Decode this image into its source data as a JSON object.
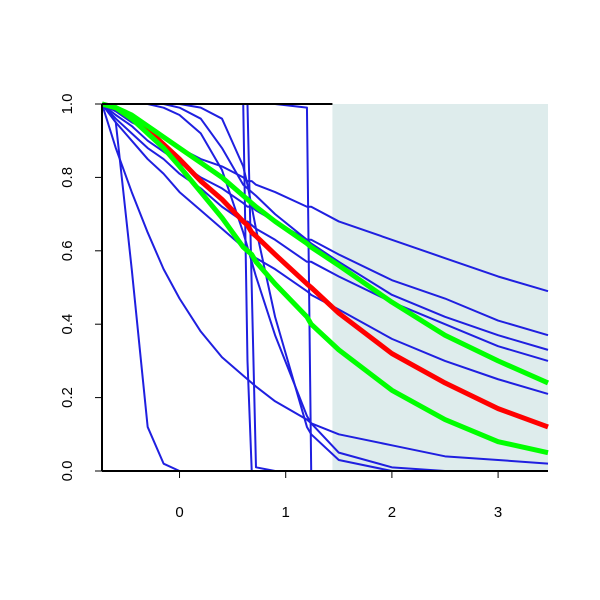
{
  "chart_data": {
    "type": "line",
    "x": [
      -0.73,
      -0.6,
      -0.45,
      -0.3,
      -0.15,
      0,
      0.2,
      0.4,
      0.6,
      0.64,
      0.68,
      0.72,
      0.9,
      1.2,
      1.24,
      1.5,
      2.0,
      2.5,
      3.0,
      3.47
    ],
    "xlim": [
      -0.73,
      3.47
    ],
    "ylim": [
      0,
      1
    ],
    "xticks": [
      0,
      1,
      2,
      3
    ],
    "yticks": [
      {
        "value": 0,
        "label": "0.0"
      },
      0.2,
      0.4,
      0.6,
      0.8,
      {
        "value": 1,
        "label": "1.0"
      }
    ],
    "shaded_region": {
      "xlim": [
        1.44,
        3.47
      ],
      "color": "#deecec"
    },
    "series": [
      {
        "color": "#1f1fe0",
        "line_width": 2,
        "values": [
          1,
          0.98,
          0.95,
          0.93,
          0.91,
          0.88,
          0.85,
          0.83,
          0.8,
          0.79,
          0.79,
          0.78,
          0.76,
          0.72,
          0.72,
          0.68,
          0.63,
          0.58,
          0.53,
          0.49
        ]
      },
      {
        "color": "#1f1fe0",
        "line_width": 2,
        "values": [
          1,
          0.97,
          0.94,
          0.9,
          0.87,
          0.84,
          0.8,
          0.77,
          0.73,
          0.72,
          0.72,
          0.71,
          0.68,
          0.63,
          0.63,
          0.59,
          0.52,
          0.47,
          0.41,
          0.37
        ]
      },
      {
        "color": "#1f1fe0",
        "line_width": 2,
        "values": [
          1,
          0.96,
          0.92,
          0.88,
          0.85,
          0.81,
          0.77,
          0.72,
          0.68,
          0.68,
          0.67,
          0.66,
          0.63,
          0.57,
          0.57,
          0.53,
          0.46,
          0.4,
          0.34,
          0.3
        ]
      },
      {
        "color": "#1f1fe0",
        "line_width": 2,
        "values": [
          1,
          0.95,
          0.9,
          0.85,
          0.81,
          0.76,
          0.71,
          0.66,
          0.61,
          0.6,
          0.59,
          0.58,
          0.55,
          0.49,
          0.48,
          0.44,
          0.36,
          0.3,
          0.25,
          0.21
        ]
      },
      {
        "color": "#1f1fe0",
        "line_width": 2,
        "values": [
          1,
          1,
          1,
          1,
          1,
          0.99,
          0.96,
          0.88,
          0.78,
          0.77,
          0.76,
          0.75,
          0.7,
          0.63,
          0.62,
          0.57,
          0.48,
          0.42,
          0.37,
          0.33
        ]
      },
      {
        "color": "#1f1fe0",
        "line_width": 2,
        "values": [
          1,
          1,
          1,
          1,
          0.99,
          0.97,
          0.92,
          0.82,
          0.65,
          0.61,
          0.57,
          0.53,
          0.37,
          0.15,
          0.13,
          0.05,
          0.01,
          0,
          0,
          0
        ]
      },
      {
        "color": "#1f1fe0",
        "line_width": 2,
        "values": [
          1,
          1,
          1,
          1,
          1,
          1,
          0.99,
          0.96,
          0.83,
          0.78,
          0.72,
          0.66,
          0.42,
          0.12,
          0.1,
          0.03,
          0,
          0,
          0,
          0
        ]
      },
      {
        "color": "#1f1fe0",
        "line_width": 2,
        "values": [
          1,
          0.95,
          0.55,
          0.12,
          0.02,
          0,
          0,
          0,
          0,
          0,
          0,
          0,
          0,
          0,
          0,
          0,
          0,
          0,
          0,
          0
        ]
      },
      {
        "color": "#1f1fe0",
        "line_width": 2,
        "values": [
          1,
          0.88,
          0.76,
          0.65,
          0.55,
          0.47,
          0.38,
          0.31,
          0.26,
          0.25,
          0.24,
          0.23,
          0.19,
          0.14,
          0.13,
          0.1,
          0.07,
          0.04,
          0.03,
          0.02
        ]
      },
      {
        "color": "#1f1fe0",
        "line_width": 2,
        "values": [
          1,
          1,
          1,
          1,
          1,
          1,
          1,
          1,
          1,
          0.3,
          0,
          0,
          0,
          0,
          0,
          0,
          0,
          0,
          0,
          0
        ]
      },
      {
        "color": "#1f1fe0",
        "line_width": 2,
        "values": [
          1,
          1,
          1,
          1,
          1,
          1,
          1,
          1,
          1,
          1,
          0.5,
          0.01,
          0,
          0,
          0,
          0,
          0,
          0,
          0,
          0
        ]
      },
      {
        "color": "#1f1fe0",
        "line_width": 2,
        "values": [
          1,
          1,
          1,
          1,
          1,
          1,
          1,
          1,
          1,
          1,
          1,
          1,
          1,
          0.99,
          0,
          0,
          0,
          0,
          0,
          0
        ]
      },
      {
        "color": "#ff0000",
        "line_width": 5,
        "values": [
          1,
          0.99,
          0.96,
          0.93,
          0.89,
          0.85,
          0.79,
          0.74,
          0.68,
          0.67,
          0.65,
          0.64,
          0.59,
          0.51,
          0.5,
          0.43,
          0.32,
          0.24,
          0.17,
          0.12
        ]
      },
      {
        "color": "#00ff00",
        "line_width": 5,
        "values": [
          1,
          0.99,
          0.97,
          0.94,
          0.91,
          0.88,
          0.84,
          0.8,
          0.75,
          0.74,
          0.73,
          0.72,
          0.68,
          0.62,
          0.61,
          0.56,
          0.46,
          0.37,
          0.3,
          0.24
        ]
      },
      {
        "color": "#00ff00",
        "line_width": 5,
        "values": [
          1,
          0.99,
          0.96,
          0.92,
          0.88,
          0.83,
          0.76,
          0.69,
          0.61,
          0.6,
          0.59,
          0.57,
          0.51,
          0.42,
          0.4,
          0.33,
          0.22,
          0.14,
          0.08,
          0.05
        ]
      }
    ]
  }
}
